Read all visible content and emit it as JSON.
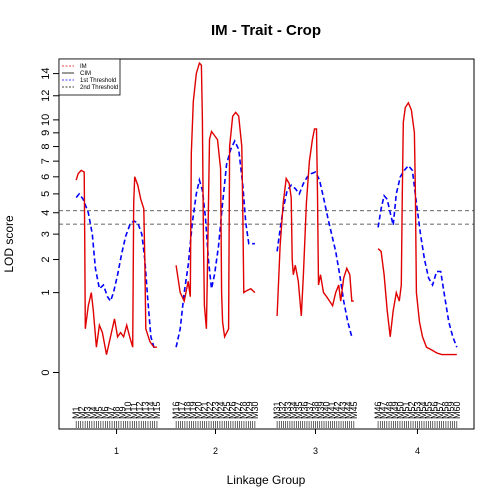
{
  "chart_data": {
    "type": "line",
    "title": "IM - Trait - Crop",
    "xlabel": "Linkage Group",
    "ylabel": "LOD score",
    "ylim": [
      -0.5,
      15.4
    ],
    "yticks": [
      0,
      1,
      2,
      3,
      4,
      5,
      6,
      7,
      8,
      9,
      10,
      12,
      14
    ],
    "yscale": "sqrt",
    "legend": {
      "position": "top-left",
      "entries": [
        {
          "label": "IM",
          "color": "#e00000",
          "style": "dashed"
        },
        {
          "label": "CIM",
          "color": "#000000",
          "style": "solid"
        },
        {
          "label": "1st Threshold",
          "color": "#0000ff",
          "style": "dashed"
        },
        {
          "label": "2nd Threshold",
          "color": "#000000",
          "style": "dashed"
        }
      ]
    },
    "thresholds": [
      {
        "name": "1st Threshold",
        "value": 4.1
      },
      {
        "name": "2nd Threshold",
        "value": 3.45
      }
    ],
    "groups": [
      {
        "name": "1",
        "xrange": [
          0.63,
          1.43
        ],
        "markers": [
          "M1",
          "M2",
          "M3",
          "M4",
          "M5",
          "M6",
          "M7",
          "M8",
          "M9",
          "M10",
          "M11",
          "M12",
          "M13",
          "M14",
          "M15"
        ],
        "red": [
          [
            0.63,
            5.8
          ],
          [
            0.65,
            6.2
          ],
          [
            0.68,
            6.4
          ],
          [
            0.71,
            6.3
          ],
          [
            0.715,
            3.0
          ],
          [
            0.72,
            0.3
          ],
          [
            0.75,
            0.7
          ],
          [
            0.78,
            1.0
          ],
          [
            0.8,
            0.6
          ],
          [
            0.83,
            0.1
          ],
          [
            0.86,
            0.35
          ],
          [
            0.89,
            0.25
          ],
          [
            0.93,
            0.05
          ],
          [
            0.97,
            0.2
          ],
          [
            1.01,
            0.45
          ],
          [
            1.04,
            0.2
          ],
          [
            1.07,
            0.25
          ],
          [
            1.1,
            0.2
          ],
          [
            1.13,
            0.35
          ],
          [
            1.16,
            0.2
          ],
          [
            1.19,
            0.1
          ],
          [
            1.2,
            4.5
          ],
          [
            1.21,
            6.0
          ],
          [
            1.24,
            5.5
          ],
          [
            1.27,
            4.7
          ],
          [
            1.3,
            4.2
          ],
          [
            1.31,
            2.0
          ],
          [
            1.32,
            0.3
          ],
          [
            1.36,
            0.15
          ],
          [
            1.4,
            0.1
          ],
          [
            1.43,
            0.1
          ]
        ],
        "blue": [
          [
            0.63,
            4.8
          ],
          [
            0.66,
            5.0
          ],
          [
            0.7,
            4.7
          ],
          [
            0.75,
            4.0
          ],
          [
            0.79,
            3.0
          ],
          [
            0.82,
            1.7
          ],
          [
            0.86,
            1.1
          ],
          [
            0.9,
            1.2
          ],
          [
            0.94,
            0.9
          ],
          [
            0.97,
            0.8
          ],
          [
            1.0,
            1.0
          ],
          [
            1.04,
            1.5
          ],
          [
            1.08,
            2.2
          ],
          [
            1.12,
            2.9
          ],
          [
            1.16,
            3.4
          ],
          [
            1.2,
            3.6
          ],
          [
            1.24,
            3.5
          ],
          [
            1.28,
            3.0
          ],
          [
            1.31,
            2.0
          ],
          [
            1.34,
            0.8
          ],
          [
            1.37,
            0.2
          ],
          [
            1.4,
            0.1
          ],
          [
            1.43,
            0.1
          ]
        ]
      },
      {
        "name": "2",
        "xrange": [
          1.62,
          2.4
        ],
        "markers": [
          "M16",
          "M17",
          "M18",
          "M19",
          "M20",
          "M21",
          "M22",
          "M23",
          "M24",
          "M25",
          "M26",
          "M27",
          "M28",
          "M29",
          "M30"
        ],
        "red": [
          [
            1.62,
            1.8
          ],
          [
            1.66,
            1.0
          ],
          [
            1.7,
            0.8
          ],
          [
            1.74,
            1.3
          ],
          [
            1.76,
            0.9
          ],
          [
            1.77,
            7.5
          ],
          [
            1.79,
            11.5
          ],
          [
            1.82,
            14.0
          ],
          [
            1.85,
            15.0
          ],
          [
            1.87,
            14.8
          ],
          [
            1.88,
            10.0
          ],
          [
            1.89,
            3.0
          ],
          [
            1.9,
            0.7
          ],
          [
            1.92,
            0.3
          ],
          [
            1.93,
            1.6
          ],
          [
            1.95,
            8.5
          ],
          [
            1.97,
            9.1
          ],
          [
            2.0,
            8.8
          ],
          [
            2.03,
            8.5
          ],
          [
            2.06,
            6.5
          ],
          [
            2.07,
            1.0
          ],
          [
            2.08,
            0.4
          ],
          [
            2.1,
            0.2
          ],
          [
            2.14,
            0.3
          ],
          [
            2.15,
            8.0
          ],
          [
            2.18,
            10.3
          ],
          [
            2.21,
            10.6
          ],
          [
            2.24,
            10.3
          ],
          [
            2.27,
            8.0
          ],
          [
            2.28,
            4.0
          ],
          [
            2.29,
            1.0
          ],
          [
            2.32,
            1.05
          ],
          [
            2.36,
            1.1
          ],
          [
            2.4,
            1.0
          ]
        ],
        "blue": [
          [
            1.62,
            0.1
          ],
          [
            1.66,
            0.3
          ],
          [
            1.7,
            1.0
          ],
          [
            1.74,
            1.8
          ],
          [
            1.78,
            3.5
          ],
          [
            1.82,
            5.0
          ],
          [
            1.85,
            5.8
          ],
          [
            1.88,
            5.2
          ],
          [
            1.91,
            3.8
          ],
          [
            1.94,
            2.0
          ],
          [
            1.97,
            1.1
          ],
          [
            2.0,
            1.5
          ],
          [
            2.04,
            2.5
          ],
          [
            2.08,
            4.5
          ],
          [
            2.12,
            6.8
          ],
          [
            2.16,
            7.8
          ],
          [
            2.2,
            8.4
          ],
          [
            2.24,
            7.8
          ],
          [
            2.28,
            5.5
          ],
          [
            2.31,
            3.5
          ],
          [
            2.34,
            2.6
          ],
          [
            2.37,
            2.6
          ],
          [
            2.4,
            2.6
          ]
        ]
      },
      {
        "name": "3",
        "xrange": [
          2.62,
          3.38
        ],
        "markers": [
          "M31",
          "M32",
          "M33",
          "M34",
          "M35",
          "M36",
          "M37",
          "M38",
          "M39",
          "M40",
          "M41",
          "M42",
          "M43",
          "M44",
          "M45"
        ],
        "red": [
          [
            2.62,
            0.5
          ],
          [
            2.65,
            2.5
          ],
          [
            2.68,
            4.5
          ],
          [
            2.71,
            5.9
          ],
          [
            2.74,
            5.6
          ],
          [
            2.76,
            4.8
          ],
          [
            2.77,
            2.0
          ],
          [
            2.78,
            1.5
          ],
          [
            2.8,
            1.8
          ],
          [
            2.83,
            1.3
          ],
          [
            2.86,
            0.5
          ],
          [
            2.88,
            1.5
          ],
          [
            2.91,
            4.5
          ],
          [
            2.94,
            7.0
          ],
          [
            2.97,
            8.5
          ],
          [
            2.99,
            9.3
          ],
          [
            3.01,
            9.3
          ],
          [
            3.02,
            5.0
          ],
          [
            3.03,
            1.2
          ],
          [
            3.05,
            1.5
          ],
          [
            3.08,
            1.0
          ],
          [
            3.11,
            0.9
          ],
          [
            3.14,
            0.8
          ],
          [
            3.17,
            0.7
          ],
          [
            3.2,
            1.0
          ],
          [
            3.23,
            1.2
          ],
          [
            3.25,
            0.8
          ],
          [
            3.28,
            1.4
          ],
          [
            3.31,
            1.7
          ],
          [
            3.34,
            1.5
          ],
          [
            3.36,
            0.8
          ],
          [
            3.38,
            0.8
          ]
        ],
        "blue": [
          [
            2.62,
            2.3
          ],
          [
            2.65,
            3.2
          ],
          [
            2.68,
            4.2
          ],
          [
            2.72,
            5.2
          ],
          [
            2.76,
            5.5
          ],
          [
            2.8,
            5.3
          ],
          [
            2.84,
            5.0
          ],
          [
            2.88,
            5.6
          ],
          [
            2.92,
            6.0
          ],
          [
            2.96,
            6.2
          ],
          [
            3.0,
            6.3
          ],
          [
            3.04,
            5.8
          ],
          [
            3.08,
            4.8
          ],
          [
            3.12,
            3.8
          ],
          [
            3.16,
            3.0
          ],
          [
            3.2,
            2.3
          ],
          [
            3.24,
            1.5
          ],
          [
            3.28,
            0.8
          ],
          [
            3.32,
            0.4
          ],
          [
            3.36,
            0.2
          ],
          [
            3.38,
            0.2
          ]
        ]
      },
      {
        "name": "4",
        "xrange": [
          3.62,
          4.4
        ],
        "markers": [
          "M46",
          "M47",
          "M48",
          "M49",
          "M50",
          "M51",
          "M52",
          "M53",
          "M54",
          "M55",
          "M56",
          "M57",
          "M58",
          "M59",
          "M60"
        ],
        "red": [
          [
            3.62,
            2.4
          ],
          [
            3.65,
            2.3
          ],
          [
            3.68,
            1.5
          ],
          [
            3.71,
            0.6
          ],
          [
            3.74,
            0.2
          ],
          [
            3.77,
            0.6
          ],
          [
            3.8,
            1.0
          ],
          [
            3.83,
            0.8
          ],
          [
            3.85,
            1.2
          ],
          [
            3.86,
            5.0
          ],
          [
            3.87,
            9.8
          ],
          [
            3.89,
            11.0
          ],
          [
            3.92,
            11.4
          ],
          [
            3.95,
            10.8
          ],
          [
            3.98,
            9.0
          ],
          [
            3.99,
            5.0
          ],
          [
            4.0,
            1.0
          ],
          [
            4.03,
            0.4
          ],
          [
            4.06,
            0.2
          ],
          [
            4.1,
            0.1
          ],
          [
            4.15,
            0.08
          ],
          [
            4.2,
            0.06
          ],
          [
            4.25,
            0.05
          ],
          [
            4.3,
            0.05
          ],
          [
            4.35,
            0.05
          ],
          [
            4.4,
            0.05
          ]
        ],
        "blue": [
          [
            3.62,
            3.3
          ],
          [
            3.65,
            4.2
          ],
          [
            3.68,
            4.9
          ],
          [
            3.71,
            4.7
          ],
          [
            3.74,
            4.0
          ],
          [
            3.77,
            3.4
          ],
          [
            3.8,
            5.0
          ],
          [
            3.84,
            6.0
          ],
          [
            3.88,
            6.4
          ],
          [
            3.92,
            6.7
          ],
          [
            3.96,
            6.4
          ],
          [
            4.0,
            4.5
          ],
          [
            4.04,
            3.0
          ],
          [
            4.08,
            2.0
          ],
          [
            4.12,
            1.4
          ],
          [
            4.16,
            1.2
          ],
          [
            4.2,
            1.6
          ],
          [
            4.24,
            1.6
          ],
          [
            4.28,
            0.9
          ],
          [
            4.32,
            0.4
          ],
          [
            4.36,
            0.2
          ],
          [
            4.4,
            0.1
          ]
        ]
      }
    ]
  }
}
